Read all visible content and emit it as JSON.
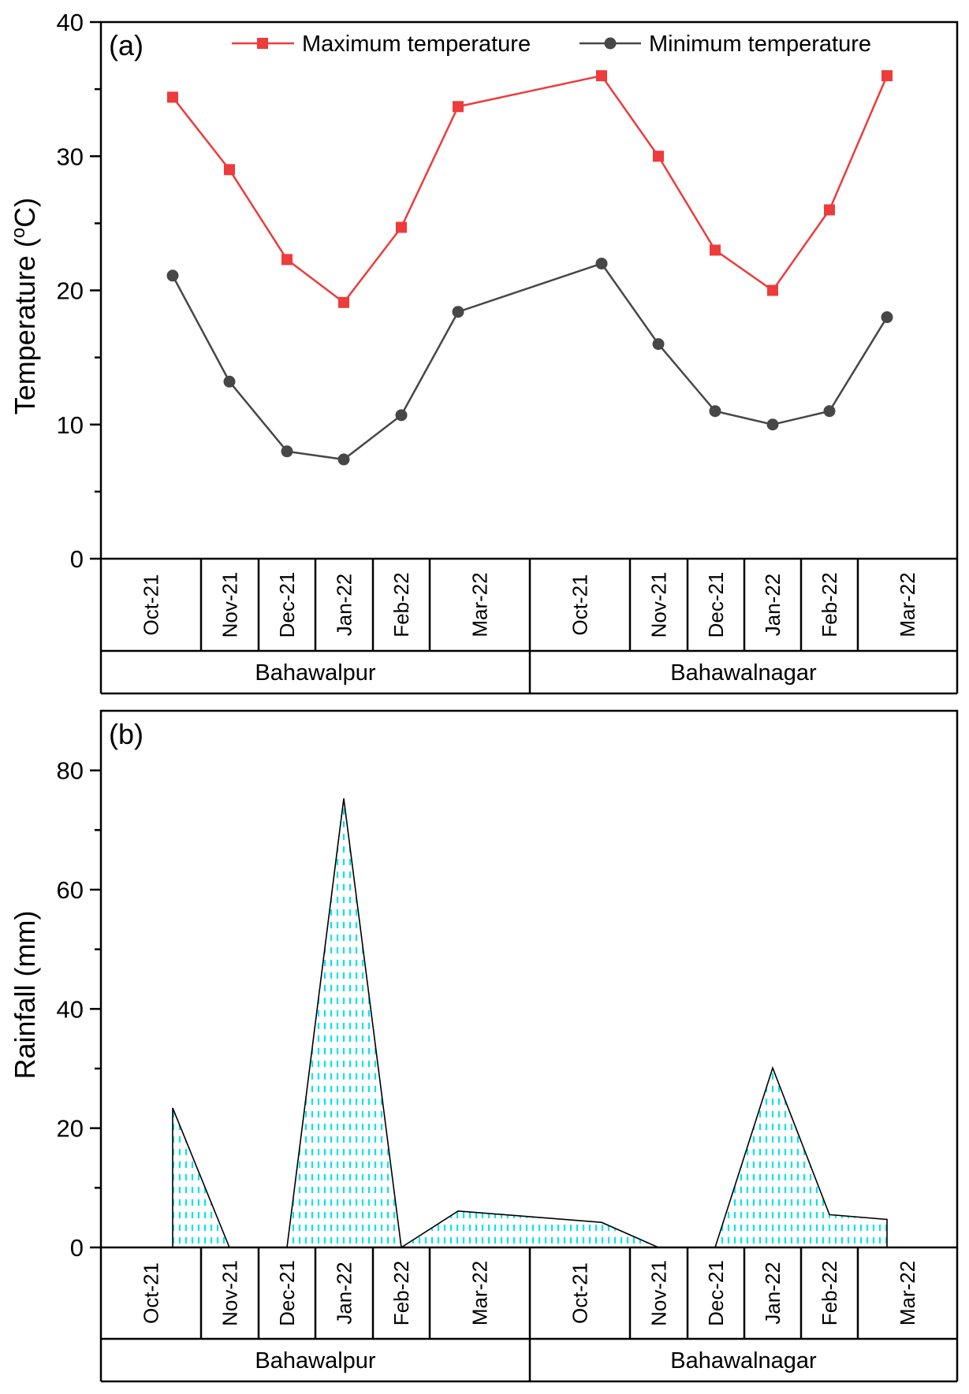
{
  "chart_data": [
    {
      "type": "line",
      "panel_label": "(a)",
      "ylabel": "Temperature (°C)",
      "ylabel_parts": {
        "main": "Temperature (",
        "sup": "o",
        "unit": "C)"
      },
      "ylim": [
        0,
        40
      ],
      "yticks": [
        0,
        10,
        20,
        30,
        40
      ],
      "grid": false,
      "legend_position": "top-right",
      "groups": [
        {
          "name": "Bahawalpur",
          "categories": [
            "Oct-21",
            "Nov-21",
            "Dec-21",
            "Jan-22",
            "Feb-22",
            "Mar-22"
          ]
        },
        {
          "name": "Bahawalnagar",
          "categories": [
            "Oct-21",
            "Nov-21",
            "Dec-21",
            "Jan-22",
            "Feb-22",
            "Mar-22"
          ]
        }
      ],
      "series": [
        {
          "name": "Maximum temperature",
          "color": "#ee3b3b",
          "marker": "square",
          "values": [
            34.4,
            29.0,
            22.3,
            19.1,
            24.7,
            33.7,
            36.0,
            30.0,
            23.0,
            20.0,
            26.0,
            36.0
          ]
        },
        {
          "name": "Minimum temperature",
          "color": "#474747",
          "marker": "circle",
          "values": [
            21.1,
            13.2,
            8.0,
            7.4,
            10.7,
            18.4,
            22.0,
            16.0,
            11.0,
            10.0,
            11.0,
            18.0
          ]
        }
      ]
    },
    {
      "type": "area",
      "panel_label": "(b)",
      "ylabel": "Rainfall (mm)",
      "ylim": [
        0,
        90
      ],
      "yticks": [
        0,
        20,
        40,
        60,
        80
      ],
      "grid": false,
      "fill_color": "#00e5ee",
      "fill_pattern": "dashed vertical lines",
      "groups": [
        {
          "name": "Bahawalpur",
          "categories": [
            "Oct-21",
            "Nov-21",
            "Dec-21",
            "Jan-22",
            "Feb-22",
            "Mar-22"
          ]
        },
        {
          "name": "Bahawalnagar",
          "categories": [
            "Oct-21",
            "Nov-21",
            "Dec-21",
            "Jan-22",
            "Feb-22",
            "Mar-22"
          ]
        }
      ],
      "series": [
        {
          "name": "Rainfall",
          "values": [
            23.4,
            0,
            0,
            75.3,
            0,
            6.1,
            4.2,
            0,
            0,
            30.1,
            5.5,
            4.7
          ]
        }
      ]
    }
  ]
}
